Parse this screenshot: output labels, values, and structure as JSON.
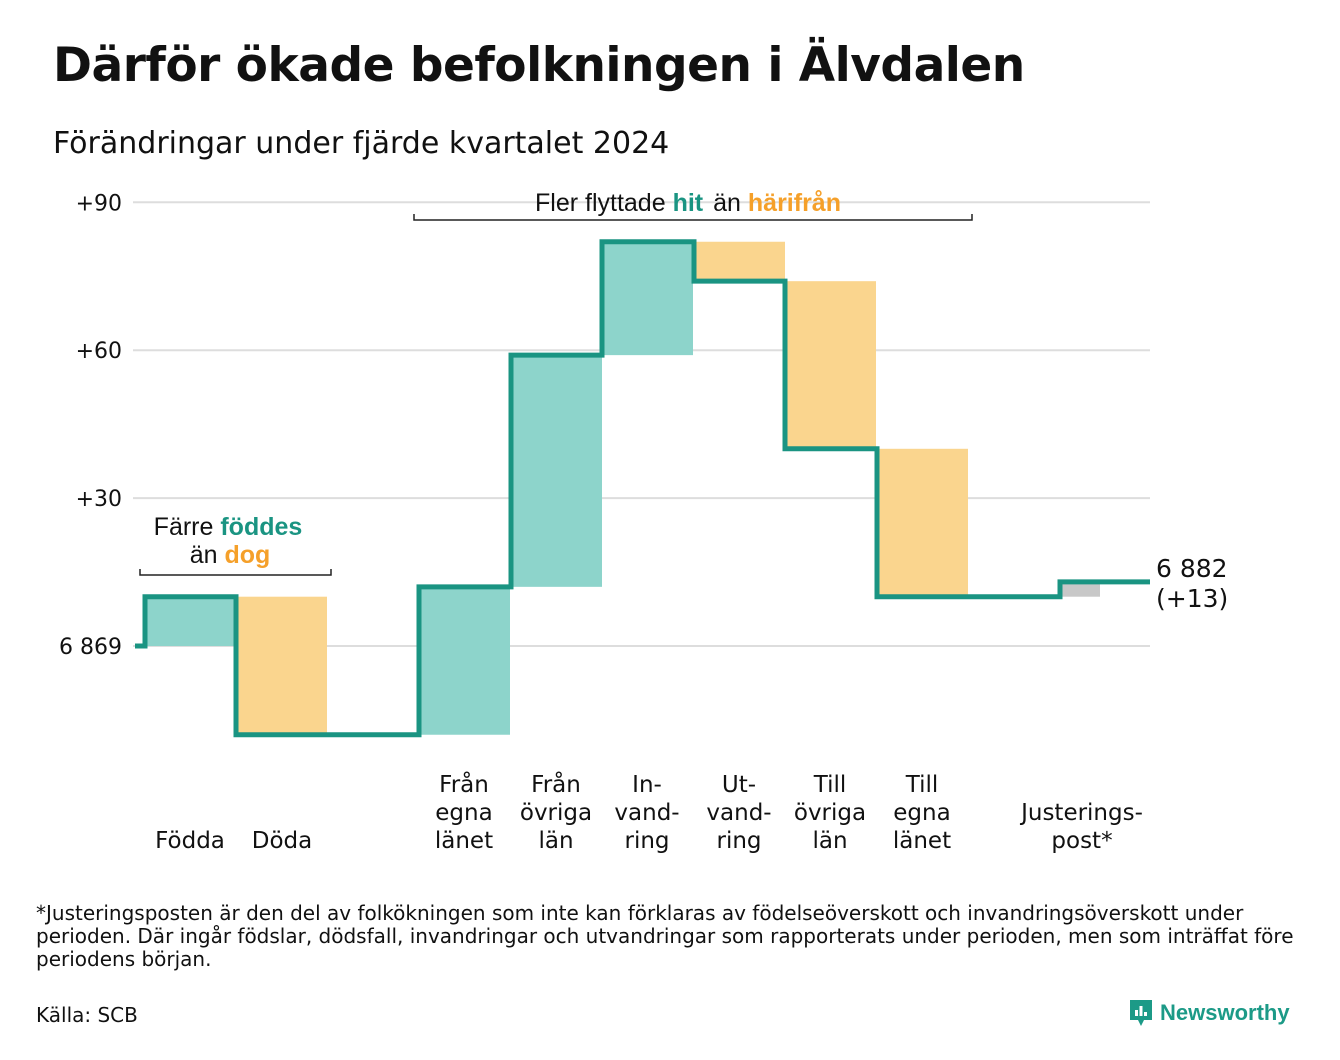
{
  "title": "Därför ökade befolkningen i Älvdalen",
  "subtitle": "Förändringar under fjärde kvartalet 2024",
  "colors": {
    "increase": "#8dd4cb",
    "decrease": "#fad58e",
    "adjustment": "#c8c8c8",
    "line": "#1a9482",
    "teal_text": "#1a9482",
    "orange_text": "#f5a02a",
    "grid": "#dddddd"
  },
  "chart_data": {
    "type": "waterfall",
    "baseline": 6869,
    "end_value": 6882,
    "y_ticks": [
      {
        "value": 0,
        "label": "6 869"
      },
      {
        "value": 30,
        "label": "+30"
      },
      {
        "value": 60,
        "label": "+60"
      },
      {
        "value": 90,
        "label": "+90"
      }
    ],
    "ylim": [
      -20,
      90
    ],
    "steps": [
      {
        "label": [
          "Födda"
        ],
        "kind": "increase",
        "start": 0,
        "end": 10
      },
      {
        "label": [
          "Döda"
        ],
        "kind": "decrease",
        "start": 10,
        "end": -18
      },
      {
        "label": [
          "Från",
          "egna",
          "länet"
        ],
        "kind": "increase",
        "start": -18,
        "end": 12
      },
      {
        "label": [
          "Från",
          "övriga",
          "län"
        ],
        "kind": "increase",
        "start": 12,
        "end": 59
      },
      {
        "label": [
          "In-",
          "vand-",
          "ring"
        ],
        "kind": "increase",
        "start": 59,
        "end": 82
      },
      {
        "label": [
          "Ut-",
          "vand-",
          "ring"
        ],
        "kind": "decrease",
        "start": 82,
        "end": 74
      },
      {
        "label": [
          "Till",
          "övriga",
          "län"
        ],
        "kind": "decrease",
        "start": 74,
        "end": 40
      },
      {
        "label": [
          "Till",
          "egna",
          "länet"
        ],
        "kind": "decrease",
        "start": 40,
        "end": 10
      },
      {
        "label": [
          "Justerings-",
          "post*"
        ],
        "kind": "adjustment",
        "start": 10,
        "end": 13
      }
    ],
    "end_label": [
      "6 882",
      "(+13)"
    ],
    "annotations": {
      "births": {
        "line1_a": "Färre ",
        "line1_b": "föddes",
        "line2_a": "än ",
        "line2_b": "dog"
      },
      "migration": {
        "a": "Fler flyttade ",
        "b": "hit",
        "c": "än ",
        "d": "härifrån"
      }
    }
  },
  "footnote": "*Justeringsposten är den del av folkökningen som inte kan förklaras av födelseöverskott och invandringsöverskott under perioden. Där ingår födslar, dödsfall, invandringar och utvandringar som rapporterats under perioden, men som inträffat före periodens början.",
  "source": "Källa: SCB",
  "brand": {
    "name": "Newsworthy",
    "icon": "bar-chart-speech-icon"
  }
}
